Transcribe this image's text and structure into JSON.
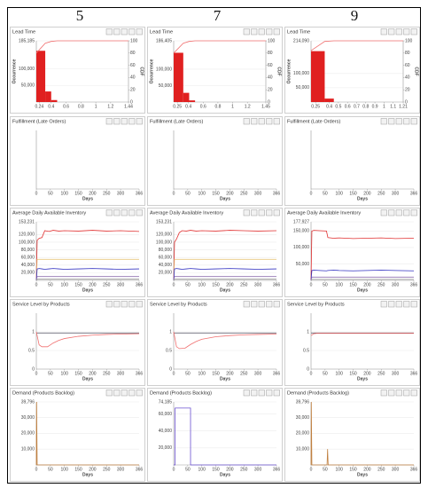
{
  "column_headers": [
    "5",
    "7",
    "9"
  ],
  "chart_data": [
    {
      "type": "histogram",
      "title": "Lead Time",
      "ylabel": "Occurrence",
      "y2label": "CDF",
      "bins": [
        0.2,
        0.32,
        0.4,
        0.48
      ],
      "values": [
        155000,
        32000,
        6000
      ],
      "color": "#e02020",
      "xlim": [
        0.2,
        1.44
      ],
      "xticks": [
        0.24,
        0.4,
        0.6,
        0.8,
        1,
        1.2,
        1.44
      ],
      "ylim": [
        0,
        185185
      ],
      "yticks": [
        {
          "value": 50000,
          "label": "50,000"
        },
        {
          "value": 100000,
          "label": "100,000"
        },
        {
          "value": 185185,
          "label": "185,185"
        }
      ],
      "y2lim": [
        0,
        100
      ],
      "y2ticks": [
        0,
        20,
        40,
        60,
        80,
        100
      ],
      "grid": true,
      "cdf": {
        "color": "#f07070",
        "x": [
          0.2,
          0.32,
          0.4,
          0.48,
          1.44
        ],
        "values": [
          80,
          96,
          99,
          100,
          100
        ]
      }
    },
    {
      "type": "line",
      "title": "Fulfillment (Late Orders)",
      "xlabel": "Days",
      "xlim": [
        0,
        366
      ],
      "xticks": [
        0,
        50,
        100,
        150,
        200,
        250,
        300,
        366
      ],
      "series": []
    },
    {
      "type": "line",
      "title": "Average Daily Available Inventory",
      "xlabel": "Days",
      "xlim": [
        0,
        366
      ],
      "xticks": [
        0,
        50,
        100,
        150,
        200,
        250,
        300,
        366
      ],
      "ylim": [
        0,
        153231
      ],
      "yticks": [
        {
          "value": 20000,
          "label": "20,000"
        },
        {
          "value": 40000,
          "label": "40,000"
        },
        {
          "value": 60000,
          "label": "60,000"
        },
        {
          "value": 80000,
          "label": "80,000"
        },
        {
          "value": 100000,
          "label": "100,000"
        },
        {
          "value": 120000,
          "label": "120,000"
        },
        {
          "value": 153231,
          "label": "153,231"
        }
      ],
      "grid": true,
      "x": [
        0,
        3,
        10,
        20,
        30,
        45,
        60,
        80,
        100,
        150,
        200,
        250,
        300,
        366
      ],
      "series": [
        {
          "color": "#e03030",
          "values": [
            0,
            105000,
            110000,
            112000,
            130000,
            128000,
            131000,
            129000,
            130000,
            129000,
            131000,
            129000,
            130000,
            128000
          ]
        },
        {
          "color": "#e8c880",
          "values": [
            0,
            55000,
            55000,
            55000,
            55000,
            55000,
            55000,
            55000,
            55000,
            55000,
            55000,
            55000,
            55000,
            55000
          ]
        },
        {
          "color": "#3030c0",
          "values": [
            0,
            30000,
            31000,
            30000,
            29000,
            30000,
            31000,
            30000,
            29000,
            30000,
            31000,
            30000,
            29000,
            30000
          ]
        },
        {
          "color": "#9070b0",
          "values": [
            0,
            10000,
            10000,
            10000,
            10000,
            10000,
            10000,
            10000,
            10000,
            10000,
            10000,
            10000,
            10000,
            10000
          ]
        },
        {
          "color": "#909090",
          "values": [
            0,
            3000,
            3000,
            3000,
            3000,
            3000,
            3000,
            3000,
            3000,
            3000,
            3000,
            3000,
            3000,
            3000
          ]
        }
      ]
    },
    {
      "type": "line",
      "title": "Service Level by Products",
      "xlabel": "Days",
      "xlim": [
        0,
        366
      ],
      "xticks": [
        0,
        50,
        100,
        150,
        200,
        250,
        300,
        366
      ],
      "ylim": [
        0,
        1.5
      ],
      "yticks": [
        0,
        0.5,
        1
      ],
      "grid": true,
      "x": [
        0,
        10,
        20,
        40,
        60,
        80,
        100,
        150,
        200,
        250,
        300,
        366
      ],
      "series": [
        {
          "color": "#505060",
          "values": [
            0.97,
            0.97,
            0.97,
            0.97,
            0.97,
            0.97,
            0.97,
            0.97,
            0.97,
            0.97,
            0.97,
            0.97
          ]
        },
        {
          "color": "#f07070",
          "values": [
            1,
            0.65,
            0.6,
            0.6,
            0.7,
            0.77,
            0.82,
            0.88,
            0.91,
            0.93,
            0.94,
            0.95
          ]
        }
      ]
    },
    {
      "type": "line",
      "title": "Demand (Products Backlog)",
      "xlabel": "Days",
      "xlim": [
        0,
        366
      ],
      "xticks": [
        0,
        50,
        100,
        150,
        200,
        250,
        300,
        366
      ],
      "ylim": [
        0,
        39796
      ],
      "yticks": [
        {
          "value": 10000,
          "label": "10,000"
        },
        {
          "value": 20000,
          "label": "20,000"
        },
        {
          "value": 30000,
          "label": "30,000"
        },
        {
          "value": 39796,
          "label": "39,796"
        }
      ],
      "grid": true,
      "x": [
        0,
        1,
        3,
        366
      ],
      "series": [
        {
          "color": "#c08040",
          "values": [
            0,
            39796,
            0,
            0
          ]
        }
      ]
    },
    {
      "type": "histogram",
      "title": "Lead Time",
      "ylabel": "Occurrence",
      "y2label": "CDF",
      "bins": [
        0.2,
        0.33,
        0.41,
        0.49
      ],
      "values": [
        150000,
        28000,
        5000
      ],
      "color": "#e02020",
      "xlim": [
        0.2,
        1.45
      ],
      "xticks": [
        0.25,
        0.4,
        0.6,
        0.8,
        1,
        1.2,
        1.45
      ],
      "ylim": [
        0,
        186405
      ],
      "yticks": [
        {
          "value": 50000,
          "label": "50,000"
        },
        {
          "value": 100000,
          "label": "100,000"
        },
        {
          "value": 186405,
          "label": "186,405"
        }
      ],
      "y2lim": [
        0,
        100
      ],
      "y2ticks": [
        0,
        20,
        40,
        60,
        80,
        100
      ],
      "grid": true,
      "cdf": {
        "color": "#f07070",
        "x": [
          0.2,
          0.33,
          0.41,
          0.49,
          1.45
        ],
        "values": [
          80,
          96,
          99,
          100,
          100
        ]
      }
    },
    {
      "type": "line",
      "title": "Fulfillment (Late Orders)",
      "xlabel": "Days",
      "xlim": [
        0,
        366
      ],
      "xticks": [
        0,
        50,
        100,
        150,
        200,
        250,
        300,
        366
      ],
      "series": []
    },
    {
      "type": "line",
      "title": "Average Daily Available Inventory",
      "xlabel": "Days",
      "xlim": [
        0,
        366
      ],
      "xticks": [
        0,
        50,
        100,
        150,
        200,
        250,
        300,
        366
      ],
      "ylim": [
        0,
        153231
      ],
      "yticks": [
        {
          "value": 20000,
          "label": "20,000"
        },
        {
          "value": 40000,
          "label": "40,000"
        },
        {
          "value": 60000,
          "label": "60,000"
        },
        {
          "value": 80000,
          "label": "80,000"
        },
        {
          "value": 100000,
          "label": "100,000"
        },
        {
          "value": 120000,
          "label": "120,000"
        },
        {
          "value": 153231,
          "label": "153,231"
        }
      ],
      "grid": true,
      "x": [
        0,
        3,
        10,
        20,
        30,
        45,
        60,
        80,
        100,
        150,
        200,
        250,
        300,
        366
      ],
      "series": [
        {
          "color": "#e03030",
          "values": [
            0,
            100000,
            108000,
            125000,
            130000,
            129000,
            131000,
            129000,
            130000,
            129000,
            131000,
            130000,
            129000,
            130000
          ]
        },
        {
          "color": "#e8c880",
          "values": [
            0,
            55000,
            55000,
            55000,
            55000,
            55000,
            55000,
            55000,
            55000,
            55000,
            55000,
            55000,
            55000,
            55000
          ]
        },
        {
          "color": "#3030c0",
          "values": [
            0,
            30000,
            31000,
            30000,
            29000,
            30000,
            31000,
            30000,
            29000,
            30000,
            31000,
            30000,
            29000,
            30000
          ]
        },
        {
          "color": "#9070b0",
          "values": [
            0,
            10000,
            10000,
            10000,
            10000,
            10000,
            10000,
            10000,
            10000,
            10000,
            10000,
            10000,
            10000,
            10000
          ]
        },
        {
          "color": "#909090",
          "values": [
            0,
            3000,
            3000,
            3000,
            3000,
            3000,
            3000,
            3000,
            3000,
            3000,
            3000,
            3000,
            3000,
            3000
          ]
        }
      ]
    },
    {
      "type": "line",
      "title": "Service Level by Products",
      "xlabel": "Days",
      "xlim": [
        0,
        366
      ],
      "xticks": [
        0,
        50,
        100,
        150,
        200,
        250,
        300,
        366
      ],
      "ylim": [
        0,
        1.5
      ],
      "yticks": [
        0,
        0.5,
        1
      ],
      "grid": true,
      "x": [
        0,
        10,
        20,
        40,
        60,
        80,
        100,
        150,
        200,
        250,
        300,
        366
      ],
      "series": [
        {
          "color": "#505060",
          "values": [
            0.97,
            0.97,
            0.97,
            0.97,
            0.97,
            0.97,
            0.97,
            0.97,
            0.97,
            0.97,
            0.97,
            0.97
          ]
        },
        {
          "color": "#f07070",
          "values": [
            1,
            0.6,
            0.55,
            0.56,
            0.66,
            0.74,
            0.8,
            0.87,
            0.9,
            0.92,
            0.93,
            0.94
          ]
        }
      ]
    },
    {
      "type": "line",
      "title": "Demand (Products Backlog)",
      "xlabel": "Days",
      "xlim": [
        0,
        366
      ],
      "xticks": [
        0,
        50,
        100,
        150,
        200,
        250,
        300,
        366
      ],
      "ylim": [
        0,
        74185
      ],
      "yticks": [
        {
          "value": 20000,
          "label": "20,000"
        },
        {
          "value": 40000,
          "label": "40,000"
        },
        {
          "value": 60000,
          "label": "60,000"
        },
        {
          "value": 74185,
          "label": "74,185"
        }
      ],
      "grid": true,
      "x": [
        0,
        5,
        5,
        60,
        60,
        366
      ],
      "series": [
        {
          "color": "#6a50d0",
          "values": [
            0,
            0,
            67000,
            67000,
            0,
            0
          ]
        }
      ]
    },
    {
      "type": "histogram",
      "title": "Lead Time",
      "ylabel": "Occurrence",
      "y2label": "CDF",
      "bins": [
        0.2,
        0.35,
        0.45
      ],
      "values": [
        178000,
        12000
      ],
      "color": "#e02020",
      "xlim": [
        0.2,
        1.21
      ],
      "xticks": [
        0.25,
        0.4,
        0.5,
        0.6,
        0.7,
        0.8,
        0.9,
        1,
        1.1,
        1.21
      ],
      "ylim": [
        0,
        214090
      ],
      "yticks": [
        {
          "value": 50000,
          "label": "50,000"
        },
        {
          "value": 100000,
          "label": "100,000"
        },
        {
          "value": 214090,
          "label": "214,090"
        }
      ],
      "y2lim": [
        0,
        100
      ],
      "y2ticks": [
        0,
        20,
        40,
        60,
        80,
        100
      ],
      "grid": true,
      "cdf": {
        "color": "#f07070",
        "x": [
          0.2,
          0.35,
          0.45,
          1.21
        ],
        "values": [
          84,
          99,
          100,
          100
        ]
      }
    },
    {
      "type": "line",
      "title": "Fulfillment (Late Orders)",
      "xlabel": "Days",
      "xlim": [
        0,
        366
      ],
      "xticks": [
        0,
        50,
        100,
        150,
        200,
        250,
        300,
        366
      ],
      "series": []
    },
    {
      "type": "line",
      "title": "Average Daily Available Inventory",
      "xlabel": "Days",
      "xlim": [
        0,
        366
      ],
      "xticks": [
        0,
        50,
        100,
        150,
        200,
        250,
        300,
        366
      ],
      "ylim": [
        0,
        177927
      ],
      "yticks": [
        {
          "value": 50000,
          "label": "50,000"
        },
        {
          "value": 100000,
          "label": "100,000"
        },
        {
          "value": 150000,
          "label": "150,000"
        },
        {
          "value": 177927,
          "label": "177,927"
        }
      ],
      "grid": true,
      "x": [
        0,
        3,
        10,
        30,
        55,
        60,
        80,
        100,
        150,
        200,
        250,
        300,
        366
      ],
      "series": [
        {
          "color": "#e03030",
          "values": [
            0,
            150000,
            152000,
            151000,
            150000,
            130000,
            128000,
            129000,
            127000,
            128000,
            129000,
            127000,
            128000
          ]
        },
        {
          "color": "#3030c0",
          "values": [
            0,
            30000,
            31000,
            30000,
            29000,
            30000,
            31000,
            30000,
            29000,
            30000,
            31000,
            30000,
            29000
          ]
        },
        {
          "color": "#9070b0",
          "values": [
            0,
            10000,
            10000,
            10000,
            10000,
            10000,
            10000,
            10000,
            10000,
            10000,
            10000,
            10000,
            10000
          ]
        },
        {
          "color": "#909090",
          "values": [
            0,
            3000,
            3000,
            3000,
            3000,
            3000,
            3000,
            3000,
            3000,
            3000,
            3000,
            3000,
            3000
          ]
        }
      ]
    },
    {
      "type": "line",
      "title": "Service Level by Products",
      "xlabel": "Days",
      "xlim": [
        0,
        366
      ],
      "xticks": [
        0,
        50,
        100,
        150,
        200,
        250,
        300,
        366
      ],
      "ylim": [
        0,
        1.5
      ],
      "yticks": [
        0,
        0.5,
        1
      ],
      "grid": true,
      "x": [
        0,
        10,
        20,
        40,
        60,
        100,
        200,
        366
      ],
      "series": [
        {
          "color": "#505060",
          "values": [
            0.97,
            0.97,
            0.97,
            0.97,
            0.97,
            0.97,
            0.97,
            0.97
          ]
        },
        {
          "color": "#f07070",
          "values": [
            0.9,
            0.95,
            0.96,
            0.96,
            0.96,
            0.96,
            0.96,
            0.96
          ]
        }
      ]
    },
    {
      "type": "line",
      "title": "Demand (Products Backlog)",
      "xlabel": "Days",
      "xlim": [
        0,
        366
      ],
      "xticks": [
        0,
        50,
        100,
        150,
        200,
        250,
        300,
        366
      ],
      "ylim": [
        0,
        39796
      ],
      "yticks": [
        {
          "value": 10000,
          "label": "10,000"
        },
        {
          "value": 20000,
          "label": "20,000"
        },
        {
          "value": 30000,
          "label": "30,000"
        },
        {
          "value": 39796,
          "label": "39,796"
        }
      ],
      "grid": true,
      "x": [
        0,
        1,
        3,
        57,
        59,
        61,
        366
      ],
      "series": [
        {
          "color": "#c08040",
          "values": [
            0,
            39796,
            0,
            0,
            10000,
            0,
            0
          ]
        }
      ]
    }
  ]
}
